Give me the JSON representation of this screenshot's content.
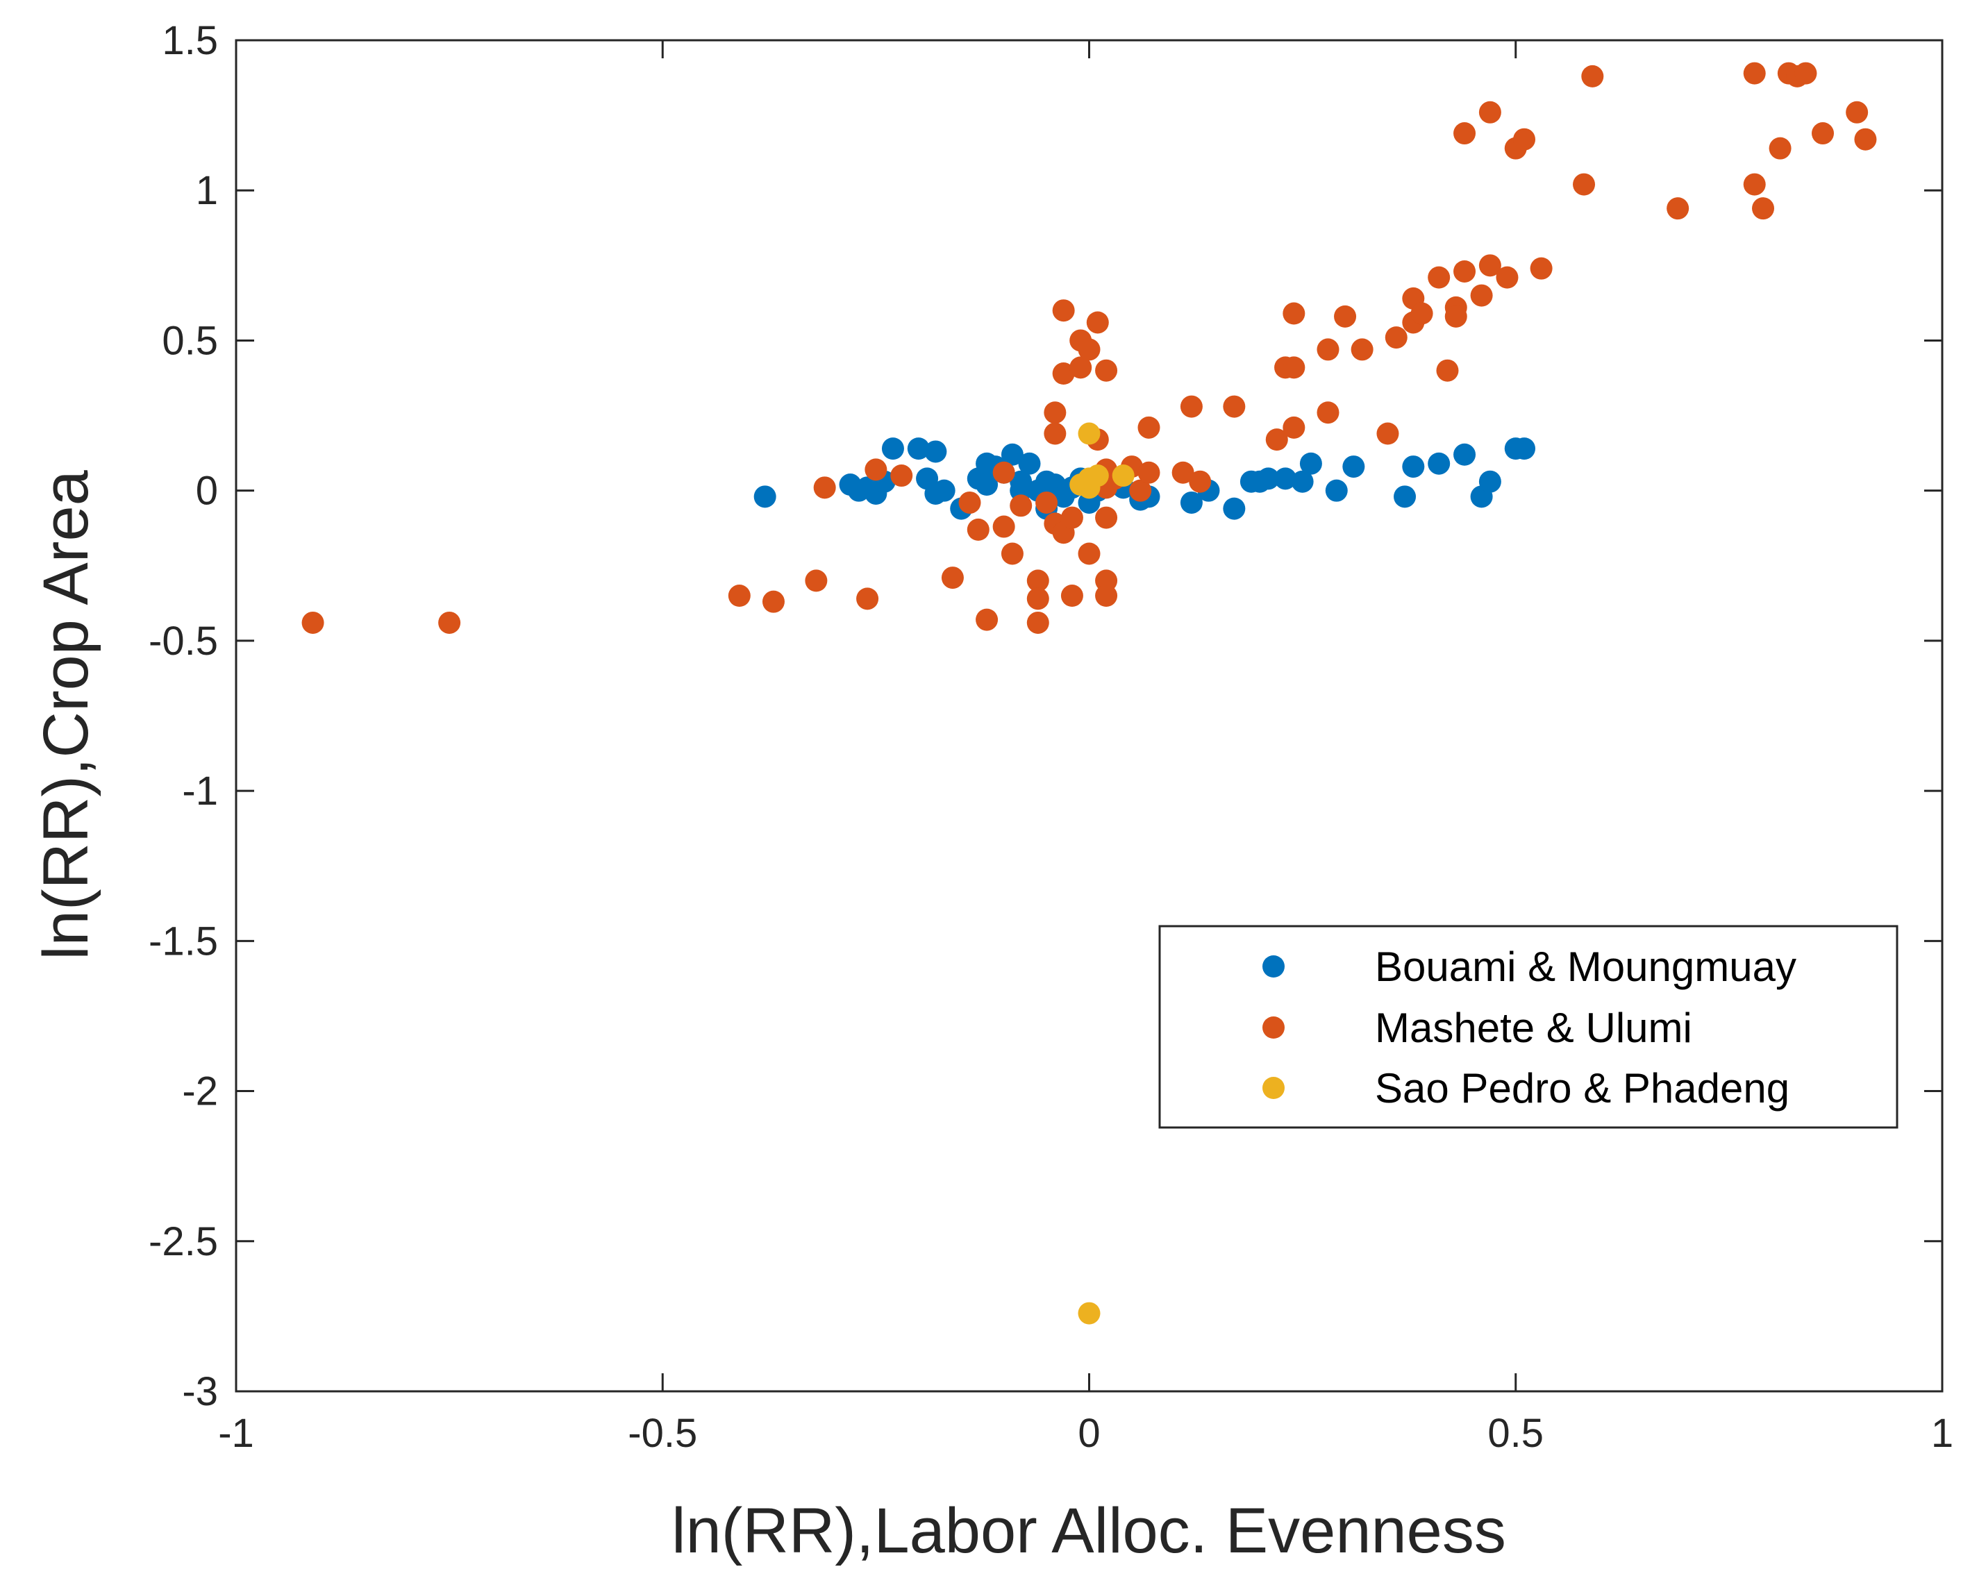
{
  "chart_data": {
    "type": "scatter",
    "xlabel": "ln(RR),Labor Alloc. Evenness",
    "ylabel": "ln(RR),Crop Area",
    "xlim": [
      -1,
      1
    ],
    "ylim": [
      -3,
      1.5
    ],
    "xticks": [
      -1,
      -0.5,
      0,
      0.5,
      1
    ],
    "xtick_labels": [
      "-1",
      "-0.5",
      "0",
      "0.5",
      "1"
    ],
    "yticks": [
      -3,
      -2.5,
      -2,
      -1.5,
      -1,
      -0.5,
      0,
      0.5,
      1,
      1.5
    ],
    "ytick_labels": [
      "-3",
      "-2.5",
      "-2",
      "-1.5",
      "-1",
      "-0.5",
      "0",
      "0.5",
      "1",
      "1.5"
    ],
    "grid": false,
    "legend_position": "lower-right",
    "series": [
      {
        "name": "Bouami & Moungmuay",
        "color": "#0072BD",
        "x": [
          -0.38,
          -0.28,
          -0.27,
          -0.26,
          -0.25,
          -0.24,
          -0.23,
          -0.2,
          -0.19,
          -0.18,
          -0.18,
          -0.17,
          -0.15,
          -0.13,
          -0.12,
          -0.12,
          -0.11,
          -0.1,
          -0.09,
          -0.08,
          -0.08,
          -0.07,
          -0.06,
          -0.05,
          -0.05,
          -0.04,
          -0.03,
          -0.02,
          -0.01,
          0.0,
          0.01,
          0.02,
          0.04,
          0.06,
          0.07,
          0.12,
          0.14,
          0.17,
          0.19,
          0.2,
          0.21,
          0.23,
          0.25,
          0.26,
          0.29,
          0.31,
          0.37,
          0.38,
          0.41,
          0.44,
          0.46,
          0.47,
          0.5,
          0.51
        ],
        "y": [
          -0.02,
          0.02,
          0.0,
          0.01,
          -0.01,
          0.03,
          0.14,
          0.14,
          0.04,
          0.13,
          -0.01,
          0.0,
          -0.06,
          0.04,
          0.09,
          0.02,
          0.08,
          0.06,
          0.12,
          0.03,
          0.0,
          0.09,
          0.0,
          0.03,
          -0.06,
          0.02,
          -0.02,
          0.01,
          0.04,
          -0.04,
          0.0,
          0.03,
          0.01,
          -0.03,
          -0.02,
          -0.04,
          0.0,
          -0.06,
          0.03,
          0.03,
          0.04,
          0.04,
          0.03,
          0.09,
          0.0,
          0.08,
          -0.02,
          0.08,
          0.09,
          0.12,
          -0.02,
          0.03,
          0.14,
          0.14
        ]
      },
      {
        "name": "Mashete & Ulumi",
        "color": "#D95319",
        "x": [
          -0.91,
          -0.75,
          -0.41,
          -0.37,
          -0.32,
          -0.31,
          -0.26,
          -0.25,
          -0.22,
          -0.16,
          -0.14,
          -0.13,
          -0.12,
          -0.1,
          -0.1,
          -0.09,
          -0.08,
          -0.06,
          -0.06,
          -0.06,
          -0.05,
          -0.04,
          -0.04,
          -0.04,
          -0.03,
          -0.03,
          -0.03,
          -0.02,
          -0.02,
          -0.01,
          -0.01,
          0.0,
          0.0,
          0.01,
          0.01,
          0.02,
          0.02,
          0.02,
          0.02,
          0.02,
          0.02,
          0.03,
          0.05,
          0.06,
          0.07,
          0.07,
          0.11,
          0.12,
          0.13,
          0.17,
          0.22,
          0.23,
          0.24,
          0.24,
          0.24,
          0.28,
          0.28,
          0.3,
          0.32,
          0.35,
          0.36,
          0.38,
          0.38,
          0.39,
          0.41,
          0.42,
          0.43,
          0.43,
          0.44,
          0.44,
          0.46,
          0.47,
          0.47,
          0.49,
          0.5,
          0.51,
          0.53,
          0.58,
          0.59,
          0.69,
          0.78,
          0.78,
          0.79,
          0.81,
          0.82,
          0.83,
          0.84,
          0.86,
          0.9,
          0.91
        ],
        "y": [
          -0.44,
          -0.44,
          -0.35,
          -0.37,
          -0.3,
          0.01,
          -0.36,
          0.07,
          0.05,
          -0.29,
          -0.04,
          -0.13,
          -0.43,
          -0.12,
          0.06,
          -0.21,
          -0.05,
          -0.3,
          -0.36,
          -0.44,
          -0.04,
          0.26,
          0.19,
          -0.11,
          -0.14,
          0.6,
          0.39,
          -0.09,
          -0.35,
          0.5,
          0.41,
          0.47,
          -0.21,
          0.56,
          0.17,
          0.4,
          -0.09,
          -0.3,
          -0.35,
          0.07,
          0.01,
          0.04,
          0.08,
          0.0,
          0.21,
          0.06,
          0.06,
          0.28,
          0.03,
          0.28,
          0.17,
          0.41,
          0.41,
          0.59,
          0.21,
          0.47,
          0.26,
          0.58,
          0.47,
          0.19,
          0.51,
          0.64,
          0.56,
          0.59,
          0.71,
          0.4,
          0.61,
          0.58,
          0.73,
          1.19,
          0.65,
          0.75,
          1.26,
          0.71,
          1.14,
          1.17,
          0.74,
          1.02,
          1.38,
          0.94,
          1.39,
          1.02,
          0.94,
          1.14,
          1.39,
          1.38,
          1.39,
          1.19,
          1.26,
          1.17
        ]
      },
      {
        "name": "Sao Pedro & Phadeng",
        "color": "#EDB120",
        "x": [
          0.0,
          0.0,
          -0.01,
          0.0,
          0.01,
          0.04,
          0.0
        ],
        "y": [
          0.19,
          0.01,
          0.02,
          0.04,
          0.05,
          0.05,
          -2.74
        ]
      }
    ]
  }
}
